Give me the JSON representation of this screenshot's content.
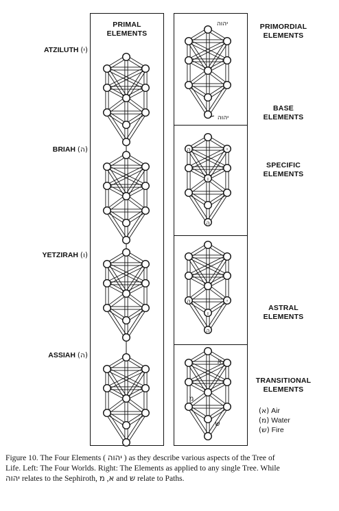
{
  "left_panel": {
    "title_line1": "PRIMAL",
    "title_line2": "ELEMENTS",
    "worlds": [
      {
        "name": "ATZILUTH",
        "letter": "(י)"
      },
      {
        "name": "BRIAH",
        "letter": "(ה)"
      },
      {
        "name": "YETZIRAH",
        "letter": "(ו)"
      },
      {
        "name": "ASSIAH",
        "letter": "(ה)"
      }
    ]
  },
  "right_labels": {
    "primordial_line1": "PRIMORDIAL",
    "primordial_line2": "ELEMENTS",
    "base_line1": "BASE",
    "base_line2": "ELEMENTS",
    "specific_line1": "SPECIFIC",
    "specific_line2": "ELEMENTS",
    "astral_line1": "ASTRAL",
    "astral_line2": "ELEMENTS",
    "transitional_line1": "TRANSITIONAL",
    "transitional_line2": "ELEMENTS"
  },
  "legend": [
    {
      "letter": "(א)",
      "label": "Air"
    },
    {
      "letter": "(מ)",
      "label": "Water"
    },
    {
      "letter": "(ש)",
      "label": "Fire"
    }
  ],
  "tree_labels": {
    "tetragrammaton_top": "יהוה",
    "tetragrammaton_bottom": "יהוה",
    "yod": "י",
    "he": "ה",
    "vav": "ו",
    "aleph": "א",
    "mem": "מ",
    "shin": "ש"
  },
  "caption": {
    "line1_a": "Figure 10. The Four Elements (",
    "line1_heb": "יהוה",
    "line1_b": ") as they describe various aspects of the Tree of",
    "line2": "Life. Left: The Four Worlds. Right: The Elements as applied to any single Tree. While",
    "line3_heb": "יהוה",
    "line3_a": "relates to the Sephiroth,",
    "line3_aleph": "א",
    "line3_sep": ",",
    "line3_mem": "מ",
    "line3_and": "and",
    "line3_shin": "ש",
    "line3_b": "relate to Paths."
  }
}
